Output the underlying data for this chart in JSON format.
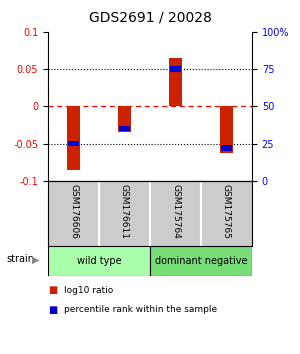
{
  "title": "GDS2691 / 20028",
  "samples": [
    "GSM176606",
    "GSM176611",
    "GSM175764",
    "GSM175765"
  ],
  "log10_ratio": [
    -0.086,
    -0.035,
    0.065,
    -0.062
  ],
  "percentile_rank": [
    25,
    35,
    75,
    22
  ],
  "groups": [
    {
      "label": "wild type",
      "start": 0,
      "end": 2,
      "color": "#aaffaa"
    },
    {
      "label": "dominant negative",
      "start": 2,
      "end": 4,
      "color": "#77dd77"
    }
  ],
  "ylim": [
    -0.1,
    0.1
  ],
  "yticks_left": [
    -0.1,
    -0.05,
    0,
    0.05,
    0.1
  ],
  "yticks_right": [
    0,
    25,
    50,
    75,
    100
  ],
  "ytick_labels_left": [
    "-0.1",
    "-0.05",
    "0",
    "0.05",
    "0.1"
  ],
  "ytick_labels_right": [
    "0",
    "25",
    "50",
    "75",
    "100%"
  ],
  "hlines_dotted": [
    -0.05,
    0.05
  ],
  "hline_dashed": 0,
  "bar_width": 0.25,
  "bar_color_red": "#cc2200",
  "bar_color_blue": "#0000cc",
  "legend_red": "log10 ratio",
  "legend_blue": "percentile rank within the sample",
  "strain_label": "strain",
  "label_bg": "#cccccc",
  "plot_bg": "#ffffff"
}
